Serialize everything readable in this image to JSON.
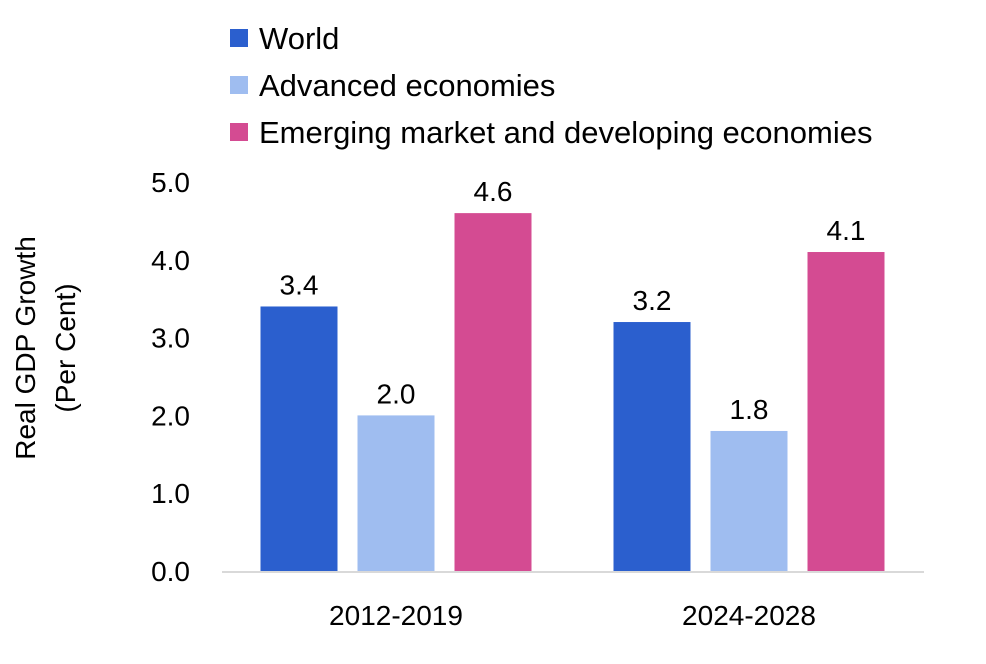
{
  "chart_data": {
    "type": "bar",
    "categories": [
      "2012-2019",
      "2024-2028"
    ],
    "series": [
      {
        "name": "World",
        "values": [
          3.4,
          3.2
        ],
        "color": "#2b5fce"
      },
      {
        "name": "Advanced economies",
        "values": [
          2.0,
          1.8
        ],
        "color": "#9fbdf0"
      },
      {
        "name": "Emerging market and developing economies",
        "values": [
          4.6,
          4.1
        ],
        "color": "#d44b92"
      }
    ],
    "data_labels": [
      [
        "3.4",
        "3.2"
      ],
      [
        "2.0",
        "1.8"
      ],
      [
        "4.6",
        "4.1"
      ]
    ],
    "ylabel_lines": [
      "Real GDP Growth",
      "(Per Cent)"
    ],
    "ylim": [
      0,
      5
    ],
    "yticks": [
      "0.0",
      "1.0",
      "2.0",
      "3.0",
      "4.0",
      "5.0"
    ],
    "legend_position": "top",
    "grid": false,
    "axis_color": "#d9d9d9"
  }
}
